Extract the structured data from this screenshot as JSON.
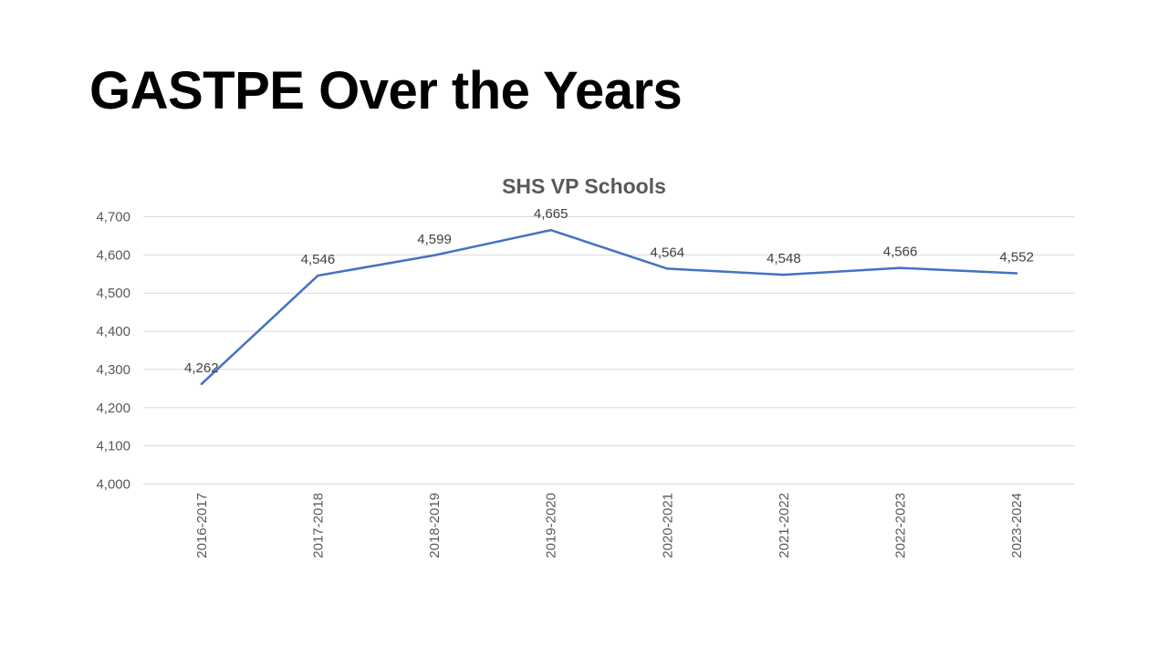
{
  "slide": {
    "title": "GASTPE Over the Years"
  },
  "colors": {
    "series_line": "#4472c4",
    "gridline": "#d9d9d9",
    "axis_text": "#595959"
  },
  "chart_data": {
    "type": "line",
    "title": "SHS VP Schools",
    "xlabel": "",
    "ylabel": "",
    "categories": [
      "2016-2017",
      "2017-2018",
      "2018-2019",
      "2019-2020",
      "2020-2021",
      "2021-2022",
      "2022-2023",
      "2023-2024"
    ],
    "series": [
      {
        "values": [
          4262,
          4546,
          4599,
          4665,
          4564,
          4548,
          4566,
          4552
        ],
        "data_labels": [
          "4,262",
          "4,546",
          "4,599",
          "4,665",
          "4,564",
          "4,548",
          "4,566",
          "4,552"
        ]
      }
    ],
    "ylim": [
      4000,
      4700
    ],
    "yticks": [
      4000,
      4100,
      4200,
      4300,
      4400,
      4500,
      4600,
      4700
    ],
    "ytick_labels": [
      "4,000",
      "4,100",
      "4,200",
      "4,300",
      "4,400",
      "4,500",
      "4,600",
      "4,700"
    ],
    "grid": true,
    "legend": "none",
    "xtick_rotation": "vertical"
  }
}
